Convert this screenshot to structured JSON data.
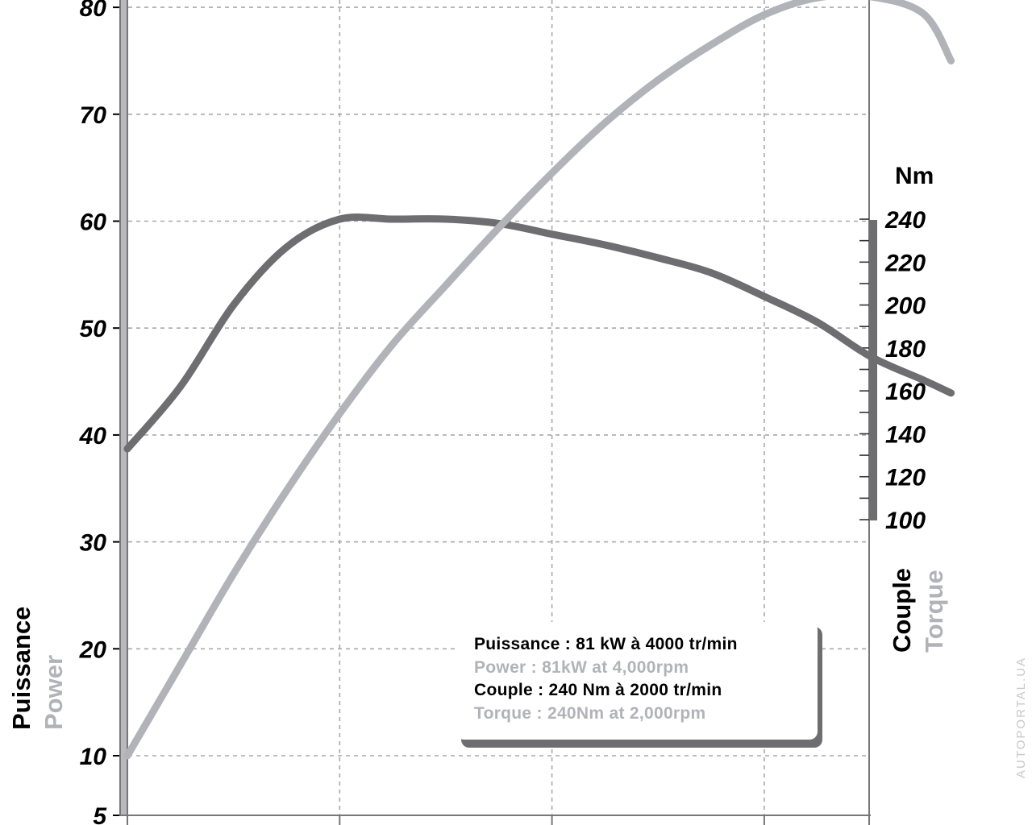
{
  "colors": {
    "power_curve": "#b2b3b9",
    "torque_curve": "#6e6e70",
    "grid": "#a9a9ad",
    "axis": "#77777a",
    "text_dark": "#000000",
    "text_light": "#b2b3b9"
  },
  "chart_data": {
    "type": "line",
    "grid": true,
    "left_axis": {
      "title": "Puissance",
      "title_en": "Power",
      "ticks": [
        5,
        10,
        20,
        30,
        40,
        50,
        60,
        70,
        80
      ],
      "range": [
        5,
        81
      ]
    },
    "right_axis": {
      "unit": "Nm",
      "title": "Couple",
      "title_en": "Torque",
      "ticks": [
        100,
        120,
        140,
        160,
        180,
        200,
        220,
        240
      ],
      "range": [
        100,
        240
      ]
    },
    "series": [
      {
        "axis": "left",
        "x": [
          0,
          0.25,
          0.5,
          0.75,
          1,
          1.25,
          1.5,
          1.75,
          2,
          2.25,
          2.5,
          2.75,
          3,
          3.25,
          3.5,
          3.75,
          3.88
        ],
        "values": [
          10,
          18.5,
          27,
          34.8,
          42,
          48.5,
          54,
          59.4,
          64.5,
          69.2,
          73.2,
          76.5,
          79.3,
          80.9,
          81,
          79.4,
          75
        ]
      },
      {
        "axis": "right",
        "x": [
          0,
          0.25,
          0.5,
          0.75,
          1,
          1.25,
          1.5,
          1.75,
          2,
          2.25,
          2.5,
          2.75,
          3,
          3.25,
          3.5,
          3.75,
          3.88
        ],
        "values": [
          133,
          162,
          200,
          227,
          240,
          240,
          240,
          238,
          233,
          228,
          222,
          215,
          204,
          192,
          176,
          165,
          159
        ]
      }
    ]
  },
  "legend": {
    "line1": "Puissance : 81 kW à 4000 tr/min",
    "line2": "Power : 81kW at 4,000rpm",
    "line3": "Couple : 240 Nm à 2000 tr/min",
    "line4": "Torque : 240Nm at 2,000rpm"
  },
  "watermark": "AUTOPORTAL.UA"
}
